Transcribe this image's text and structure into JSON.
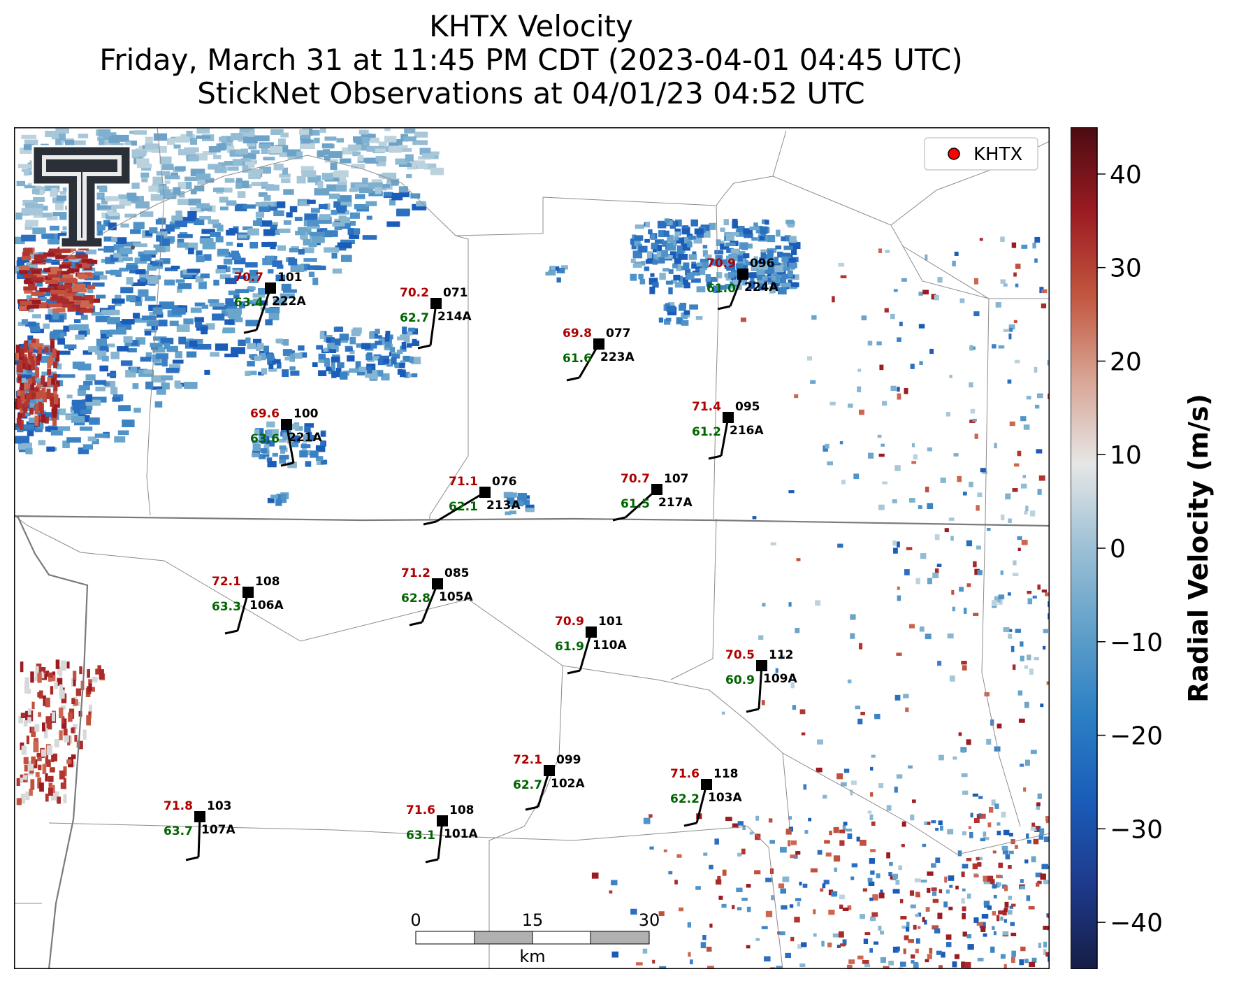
{
  "title": {
    "line1": "KHTX Velocity",
    "line2": "Friday, March 31 at 11:45 PM CDT (2023-04-01 04:45 UTC)",
    "line3": "StickNet Observations at 04/01/23 04:52 UTC"
  },
  "legend": {
    "label": "KHTX",
    "marker_color": "#ff0000"
  },
  "logo": {
    "name": "texas-tech-logo"
  },
  "scalebar": {
    "ticks": [
      "0",
      "15",
      "30"
    ],
    "unit": "km"
  },
  "colorbar": {
    "label": "Radial Velocity (m/s)",
    "min": -45,
    "max": 45,
    "ticks": [
      "40",
      "30",
      "20",
      "10",
      "0",
      "−10",
      "−20",
      "−30",
      "−40"
    ],
    "tick_values": [
      40,
      30,
      20,
      10,
      0,
      -10,
      -20,
      -30,
      -40
    ],
    "colors": [
      "#161d45",
      "#1e3a8c",
      "#1a5cb8",
      "#2b7fc4",
      "#5f9fc9",
      "#9cc0d5",
      "#e6e6e6",
      "#d8a595",
      "#c2563f",
      "#9b1b22",
      "#4b0c12"
    ]
  },
  "stations": [
    {
      "id": "222A",
      "temp": "70.7",
      "dew": "63.4",
      "num": "101"
    },
    {
      "id": "214A",
      "temp": "70.2",
      "dew": "62.7",
      "num": "071"
    },
    {
      "id": "223A",
      "temp": "69.8",
      "dew": "61.6",
      "num": "077"
    },
    {
      "id": "224A",
      "temp": "70.9",
      "dew": "61.0",
      "num": "096"
    },
    {
      "id": "221A",
      "temp": "69.6",
      "dew": "63.6",
      "num": "100"
    },
    {
      "id": "216A",
      "temp": "71.4",
      "dew": "61.2",
      "num": "095"
    },
    {
      "id": "213A",
      "temp": "71.1",
      "dew": "62.1",
      "num": "076"
    },
    {
      "id": "217A",
      "temp": "70.7",
      "dew": "61.5",
      "num": "107"
    },
    {
      "id": "106A",
      "temp": "72.1",
      "dew": "63.3",
      "num": "108"
    },
    {
      "id": "105A",
      "temp": "71.2",
      "dew": "62.8",
      "num": "085"
    },
    {
      "id": "110A",
      "temp": "70.9",
      "dew": "61.9",
      "num": "101"
    },
    {
      "id": "109A",
      "temp": "70.5",
      "dew": "60.9",
      "num": "112"
    },
    {
      "id": "102A",
      "temp": "72.1",
      "dew": "62.7",
      "num": "099"
    },
    {
      "id": "103A",
      "temp": "71.6",
      "dew": "62.2",
      "num": "118"
    },
    {
      "id": "107A",
      "temp": "71.8",
      "dew": "63.7",
      "num": "103"
    },
    {
      "id": "101A",
      "temp": "71.6",
      "dew": "63.1",
      "num": "108"
    }
  ]
}
